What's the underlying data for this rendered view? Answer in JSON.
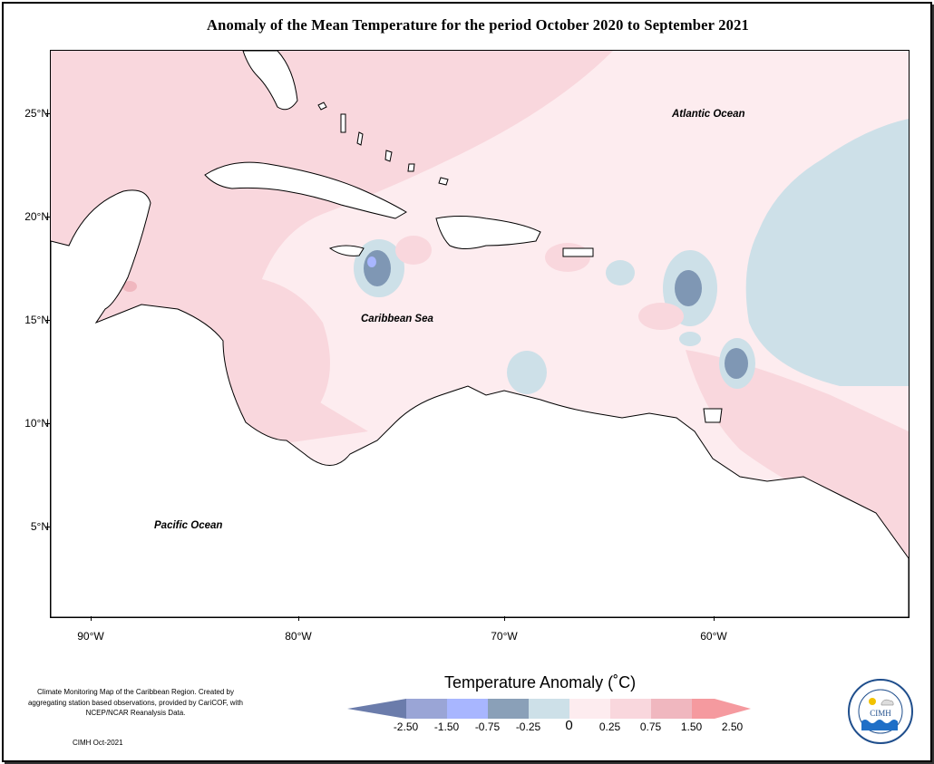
{
  "title": "Anomaly of the Mean Temperature for the period October 2020 to September 2021",
  "map_labels": {
    "atlantic": "Atlantic Ocean",
    "caribbean": "Caribbean Sea",
    "pacific": "Pacific Ocean"
  },
  "axes": {
    "lat_ticks": [
      "25°N",
      "20°N",
      "15°N",
      "10°N",
      "5°N"
    ],
    "lon_ticks": [
      "90°W",
      "80°W",
      "70°W",
      "60°W"
    ]
  },
  "legend": {
    "title": "Temperature Anomaly (˚C)",
    "labels": [
      "-2.50",
      "-1.50",
      "-0.75",
      "-0.25",
      "0",
      "0.25",
      "0.75",
      "1.50",
      "2.50"
    ],
    "colors": [
      "#6b7cab",
      "#9aa5d6",
      "#a8b6ff",
      "#8aa0b8",
      "#cde0e8",
      "#fdecef",
      "#f9d7dd",
      "#f0b7bf",
      "#f59a9f"
    ]
  },
  "footnote": {
    "text": "Climate Monitoring Map of the Caribbean Region. Created by aggregating station based observations, provided by CariCOF, with NCEP/NCAR Reanalysis Data.",
    "date": "CIMH Oct-2021"
  },
  "logo": {
    "name": "CIMH",
    "ring_text": "Caribbean Institute for Meteorology and Hydrology"
  },
  "colors": {
    "warm_light": "#fdecef",
    "warm": "#f9d7dd",
    "cool_light": "#cde0e8",
    "cool_dark": "#7f97b4"
  }
}
